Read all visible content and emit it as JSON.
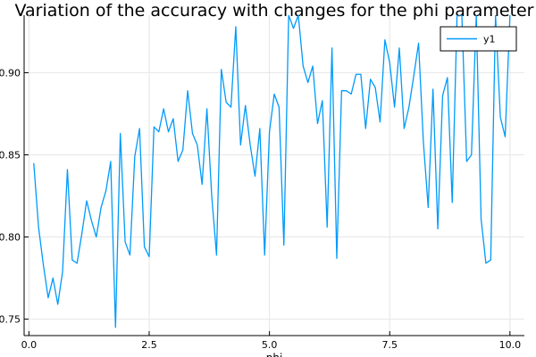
{
  "chart_data": {
    "type": "line",
    "title": "Variation of the accuracy with changes for the phi parameter",
    "xlabel": "phi",
    "ylabel": "",
    "xlim": [
      -0.1,
      10.3
    ],
    "ylim": [
      0.74,
      0.935
    ],
    "xticks": [
      0.0,
      2.5,
      5.0,
      7.5,
      10.0
    ],
    "xtick_labels": [
      "0.0",
      "2.5",
      "5.0",
      "7.5",
      "10.0"
    ],
    "yticks": [
      0.75,
      0.8,
      0.85,
      0.9
    ],
    "ytick_labels": [
      "0.75",
      "0.80",
      "0.85",
      "0.90"
    ],
    "grid": true,
    "legend": {
      "position": "top-right",
      "entries": [
        "y1"
      ]
    },
    "series": [
      {
        "name": "y1",
        "color": "#009AFA",
        "x": [
          0.1,
          0.2,
          0.3,
          0.4,
          0.5,
          0.6,
          0.7,
          0.8,
          0.9,
          1.0,
          1.1,
          1.2,
          1.3,
          1.4,
          1.5,
          1.6,
          1.7,
          1.8,
          1.9,
          2.0,
          2.1,
          2.2,
          2.3,
          2.4,
          2.5,
          2.6,
          2.7,
          2.8,
          2.9,
          3.0,
          3.1,
          3.2,
          3.3,
          3.4,
          3.5,
          3.6,
          3.7,
          3.8,
          3.9,
          4.0,
          4.1,
          4.2,
          4.3,
          4.4,
          4.5,
          4.6,
          4.7,
          4.8,
          4.9,
          5.0,
          5.1,
          5.2,
          5.3,
          5.4,
          5.5,
          5.6,
          5.7,
          5.8,
          5.9,
          6.0,
          6.1,
          6.2,
          6.3,
          6.4,
          6.5,
          6.6,
          6.7,
          6.8,
          6.9,
          7.0,
          7.1,
          7.2,
          7.3,
          7.4,
          7.5,
          7.6,
          7.7,
          7.8,
          7.9,
          8.0,
          8.1,
          8.2,
          8.3,
          8.4,
          8.5,
          8.6,
          8.7,
          8.8,
          8.9,
          9.0,
          9.1,
          9.2,
          9.3,
          9.4,
          9.5,
          9.6,
          9.7,
          9.8,
          9.9,
          10.0
        ],
        "y": [
          0.845,
          0.806,
          0.783,
          0.763,
          0.775,
          0.759,
          0.779,
          0.841,
          0.786,
          0.784,
          0.802,
          0.822,
          0.81,
          0.8,
          0.818,
          0.828,
          0.846,
          0.745,
          0.863,
          0.797,
          0.789,
          0.849,
          0.866,
          0.794,
          0.788,
          0.867,
          0.864,
          0.878,
          0.864,
          0.872,
          0.846,
          0.853,
          0.889,
          0.863,
          0.856,
          0.832,
          0.878,
          0.825,
          0.789,
          0.902,
          0.882,
          0.879,
          0.928,
          0.856,
          0.88,
          0.856,
          0.837,
          0.866,
          0.789,
          0.864,
          0.887,
          0.879,
          0.795,
          0.935,
          0.927,
          0.935,
          0.904,
          0.894,
          0.904,
          0.869,
          0.883,
          0.806,
          0.915,
          0.787,
          0.889,
          0.889,
          0.887,
          0.899,
          0.899,
          0.866,
          0.896,
          0.891,
          0.87,
          0.92,
          0.906,
          0.879,
          0.915,
          0.866,
          0.879,
          0.898,
          0.918,
          0.858,
          0.818,
          0.89,
          0.805,
          0.886,
          0.897,
          0.821,
          0.935,
          0.935,
          0.846,
          0.85,
          0.935,
          0.811,
          0.784,
          0.786,
          0.935,
          0.873,
          0.861,
          0.935
        ]
      }
    ]
  }
}
